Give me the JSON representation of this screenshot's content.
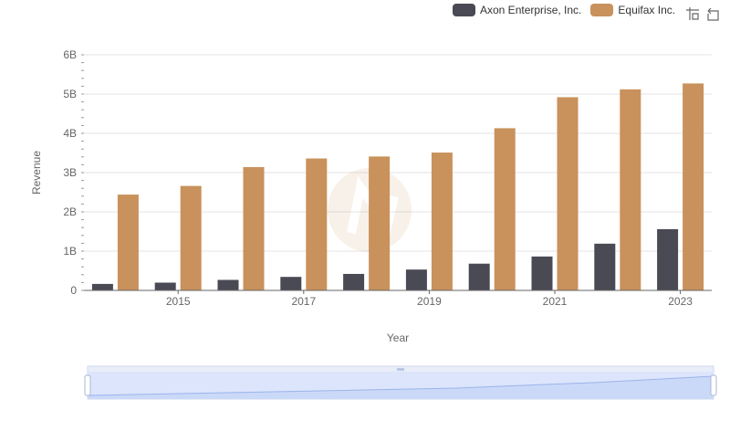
{
  "legend": {
    "items": [
      {
        "label": "Axon Enterprise, Inc.",
        "color": "#4a4a55"
      },
      {
        "label": "Equifax Inc.",
        "color": "#c9915c"
      }
    ]
  },
  "toolbox": {
    "icons": [
      "zoom-icon",
      "restore-icon"
    ]
  },
  "chart_data": {
    "type": "bar",
    "title": "",
    "xlabel": "Year",
    "ylabel": "Revenue",
    "ylim": [
      0,
      6000000000
    ],
    "yticks": [
      "0",
      "1B",
      "2B",
      "3B",
      "4B",
      "5B",
      "6B"
    ],
    "categories": [
      "2014",
      "2015",
      "2016",
      "2017",
      "2018",
      "2019",
      "2020",
      "2021",
      "2022",
      "2023"
    ],
    "xtick_labels": [
      "2015",
      "2017",
      "2019",
      "2021",
      "2023"
    ],
    "series": [
      {
        "name": "Axon Enterprise, Inc.",
        "color": "#4a4a55",
        "values": [
          165000000,
          198000000,
          268000000,
          344000000,
          420000000,
          531000000,
          681000000,
          863000000,
          1190000000,
          1560000000
        ]
      },
      {
        "name": "Equifax Inc.",
        "color": "#c9915c",
        "values": [
          2440000000,
          2660000000,
          3140000000,
          3360000000,
          3410000000,
          3510000000,
          4130000000,
          4920000000,
          5120000000,
          5270000000
        ]
      }
    ],
    "grid": true,
    "legend_position": "top-right"
  }
}
